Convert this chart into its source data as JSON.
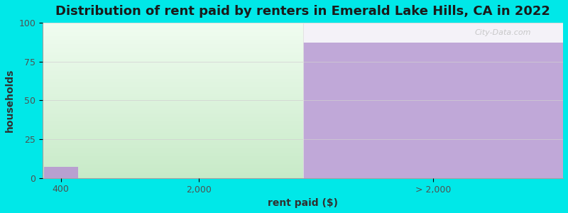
{
  "title": "Distribution of rent paid by renters in Emerald Lake Hills, CA in 2022",
  "xlabel": "rent paid ($)",
  "ylabel": "households",
  "categories": [
    "400",
    "2,000",
    "> 2,000"
  ],
  "bar_values": [
    7,
    87
  ],
  "bar_color": "#b8a0d0",
  "bg_color": "#00e8e8",
  "plot_bg_color": "#ffffff",
  "left_shade_top": "#eaf5ea",
  "left_shade_bottom": "#c8eac8",
  "right_bar_color": "#c0a8d8",
  "right_top_color": "#f0eeee",
  "watermark": "City-Data.com",
  "ylim": [
    0,
    100
  ],
  "yticks": [
    0,
    25,
    50,
    75,
    100
  ],
  "title_fontsize": 13,
  "axis_label_fontsize": 10,
  "tick_fontsize": 9
}
